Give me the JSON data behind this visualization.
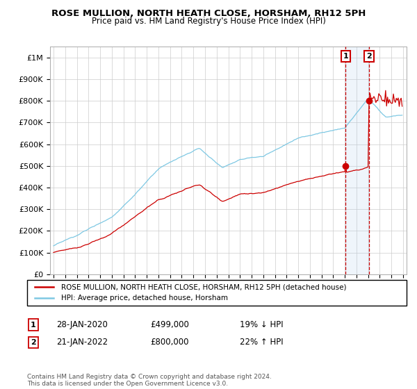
{
  "title": "ROSE MULLION, NORTH HEATH CLOSE, HORSHAM, RH12 5PH",
  "subtitle": "Price paid vs. HM Land Registry's House Price Index (HPI)",
  "hpi_color": "#7ec8e3",
  "property_color": "#cc0000",
  "dashed_color": "#cc0000",
  "shade_color": "#ddeeff",
  "ylim": [
    0,
    1050000
  ],
  "yticks": [
    0,
    100000,
    200000,
    300000,
    400000,
    500000,
    600000,
    700000,
    800000,
    900000,
    1000000
  ],
  "ytick_labels": [
    "£0",
    "£100K",
    "£200K",
    "£300K",
    "£400K",
    "£500K",
    "£600K",
    "£700K",
    "£800K",
    "£900K",
    "£1M"
  ],
  "sale1_date": 2020.08,
  "sale1_price": 499000,
  "sale2_date": 2022.08,
  "sale2_price": 800000,
  "legend_property": "ROSE MULLION, NORTH HEATH CLOSE, HORSHAM, RH12 5PH (detached house)",
  "legend_hpi": "HPI: Average price, detached house, Horsham",
  "footer": "Contains HM Land Registry data © Crown copyright and database right 2024.\nThis data is licensed under the Open Government Licence v3.0.",
  "xlim_start": 1994.7,
  "xlim_end": 2025.3,
  "bg_color": "#f0f4f8"
}
